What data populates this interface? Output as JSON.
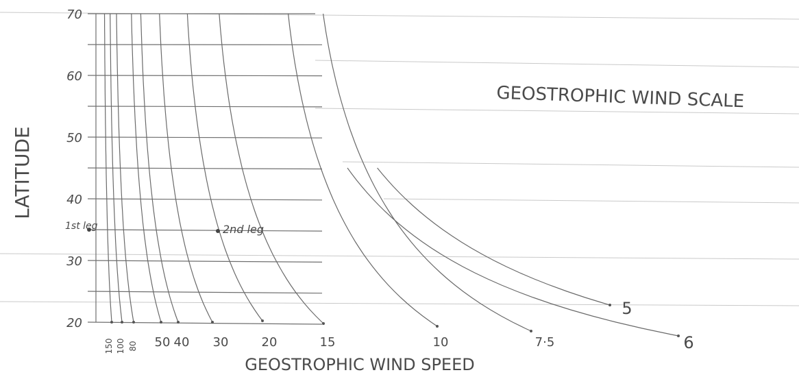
{
  "title": "GEOSTROPHIC WIND SCALE",
  "y_axis": {
    "label": "LATITUDE",
    "ticks": [
      "70",
      "60",
      "50",
      "40",
      "30",
      "20"
    ]
  },
  "x_axis": {
    "label": "GEOSTROPHIC WIND SPEED",
    "ticks": [
      "150",
      "100",
      "80",
      "50",
      "40",
      "30",
      "20",
      "15",
      "10",
      "7·5"
    ]
  },
  "curve_end_labels": [
    "5",
    "6"
  ],
  "annotations": [
    "1st leg",
    "2nd leg"
  ]
}
